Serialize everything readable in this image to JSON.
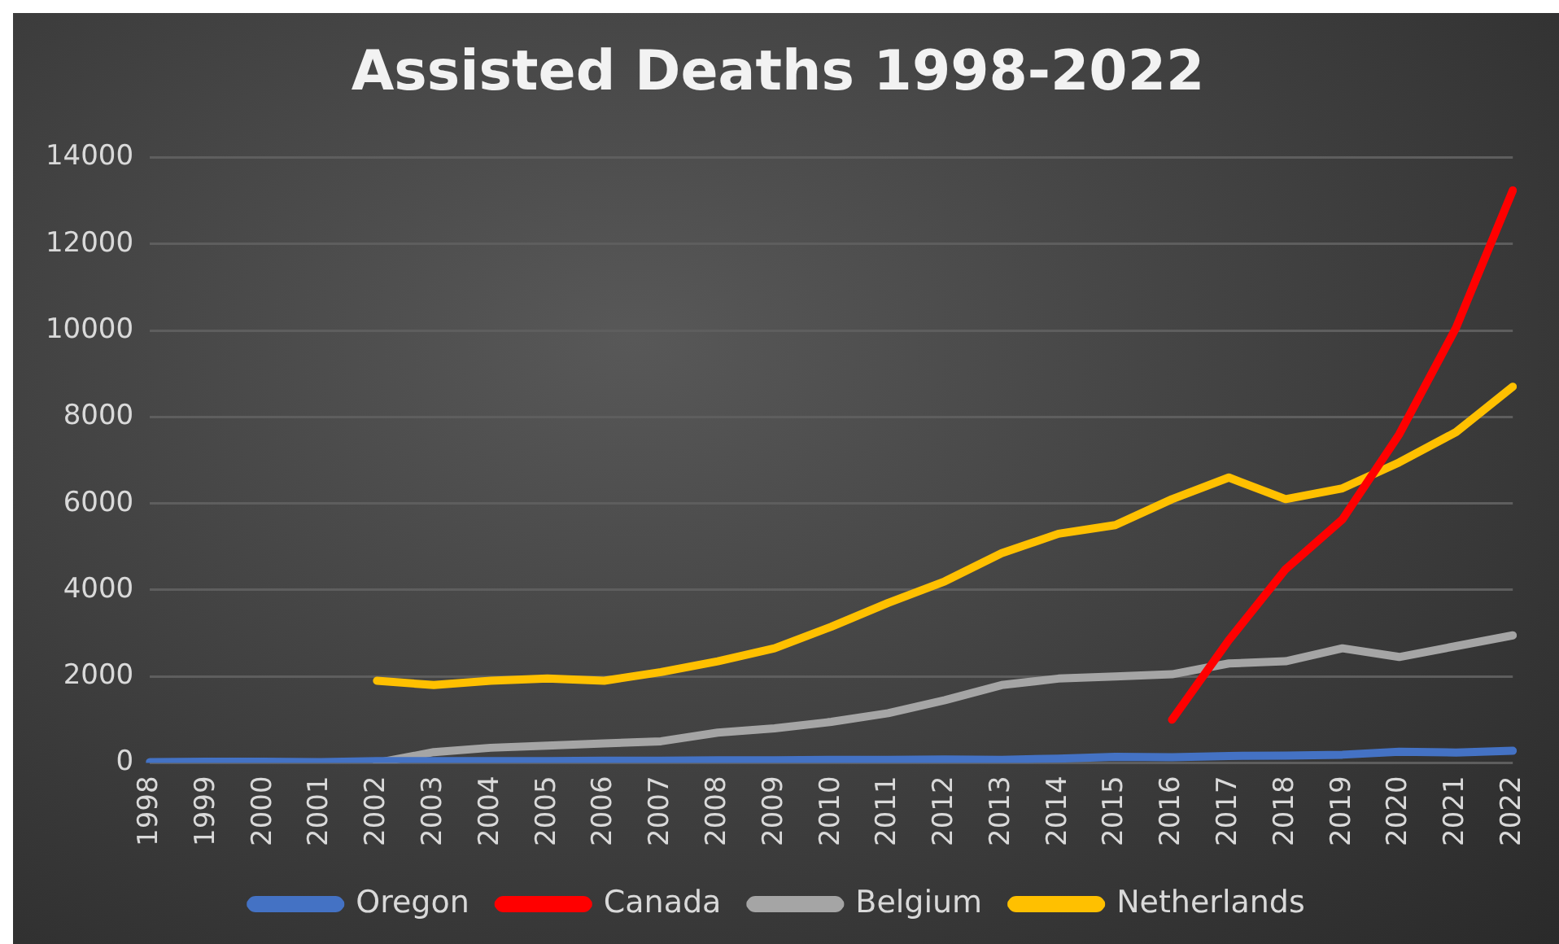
{
  "chart_data": {
    "type": "line",
    "title": "Assisted Deaths 1998-2022",
    "categories": [
      "1998",
      "1999",
      "2000",
      "2001",
      "2002",
      "2003",
      "2004",
      "2005",
      "2006",
      "2007",
      "2008",
      "2009",
      "2010",
      "2011",
      "2012",
      "2013",
      "2014",
      "2015",
      "2016",
      "2017",
      "2018",
      "2019",
      "2020",
      "2021",
      "2022"
    ],
    "series": [
      {
        "name": "Oregon",
        "color": "#4472c4",
        "values": [
          20,
          30,
          30,
          20,
          40,
          40,
          40,
          40,
          50,
          50,
          60,
          60,
          70,
          70,
          80,
          70,
          100,
          140,
          130,
          160,
          170,
          190,
          260,
          240,
          280
        ]
      },
      {
        "name": "Canada",
        "color": "#ff0000",
        "values": [
          null,
          null,
          null,
          null,
          null,
          null,
          null,
          null,
          null,
          null,
          null,
          null,
          null,
          null,
          null,
          null,
          null,
          null,
          1000,
          2840,
          4480,
          5630,
          7600,
          10060,
          13240
        ]
      },
      {
        "name": "Belgium",
        "color": "#a5a5a5",
        "values": [
          null,
          null,
          null,
          null,
          0,
          250,
          350,
          400,
          450,
          500,
          700,
          800,
          950,
          1150,
          1450,
          1800,
          1950,
          2000,
          2050,
          2300,
          2350,
          2650,
          2450,
          2700,
          2950
        ]
      },
      {
        "name": "Netherlands",
        "color": "#ffc000",
        "values": [
          null,
          null,
          null,
          null,
          1900,
          1800,
          1900,
          1950,
          1900,
          2100,
          2350,
          2650,
          3150,
          3700,
          4200,
          4850,
          5300,
          5500,
          6100,
          6600,
          6100,
          6350,
          6950,
          7650,
          8700
        ]
      }
    ],
    "ylim": [
      0,
      14000
    ],
    "yticks": [
      0,
      2000,
      4000,
      6000,
      8000,
      10000,
      12000,
      14000
    ],
    "grid": "y",
    "legend": "bottom",
    "marker": "none",
    "line_style": "solid"
  }
}
